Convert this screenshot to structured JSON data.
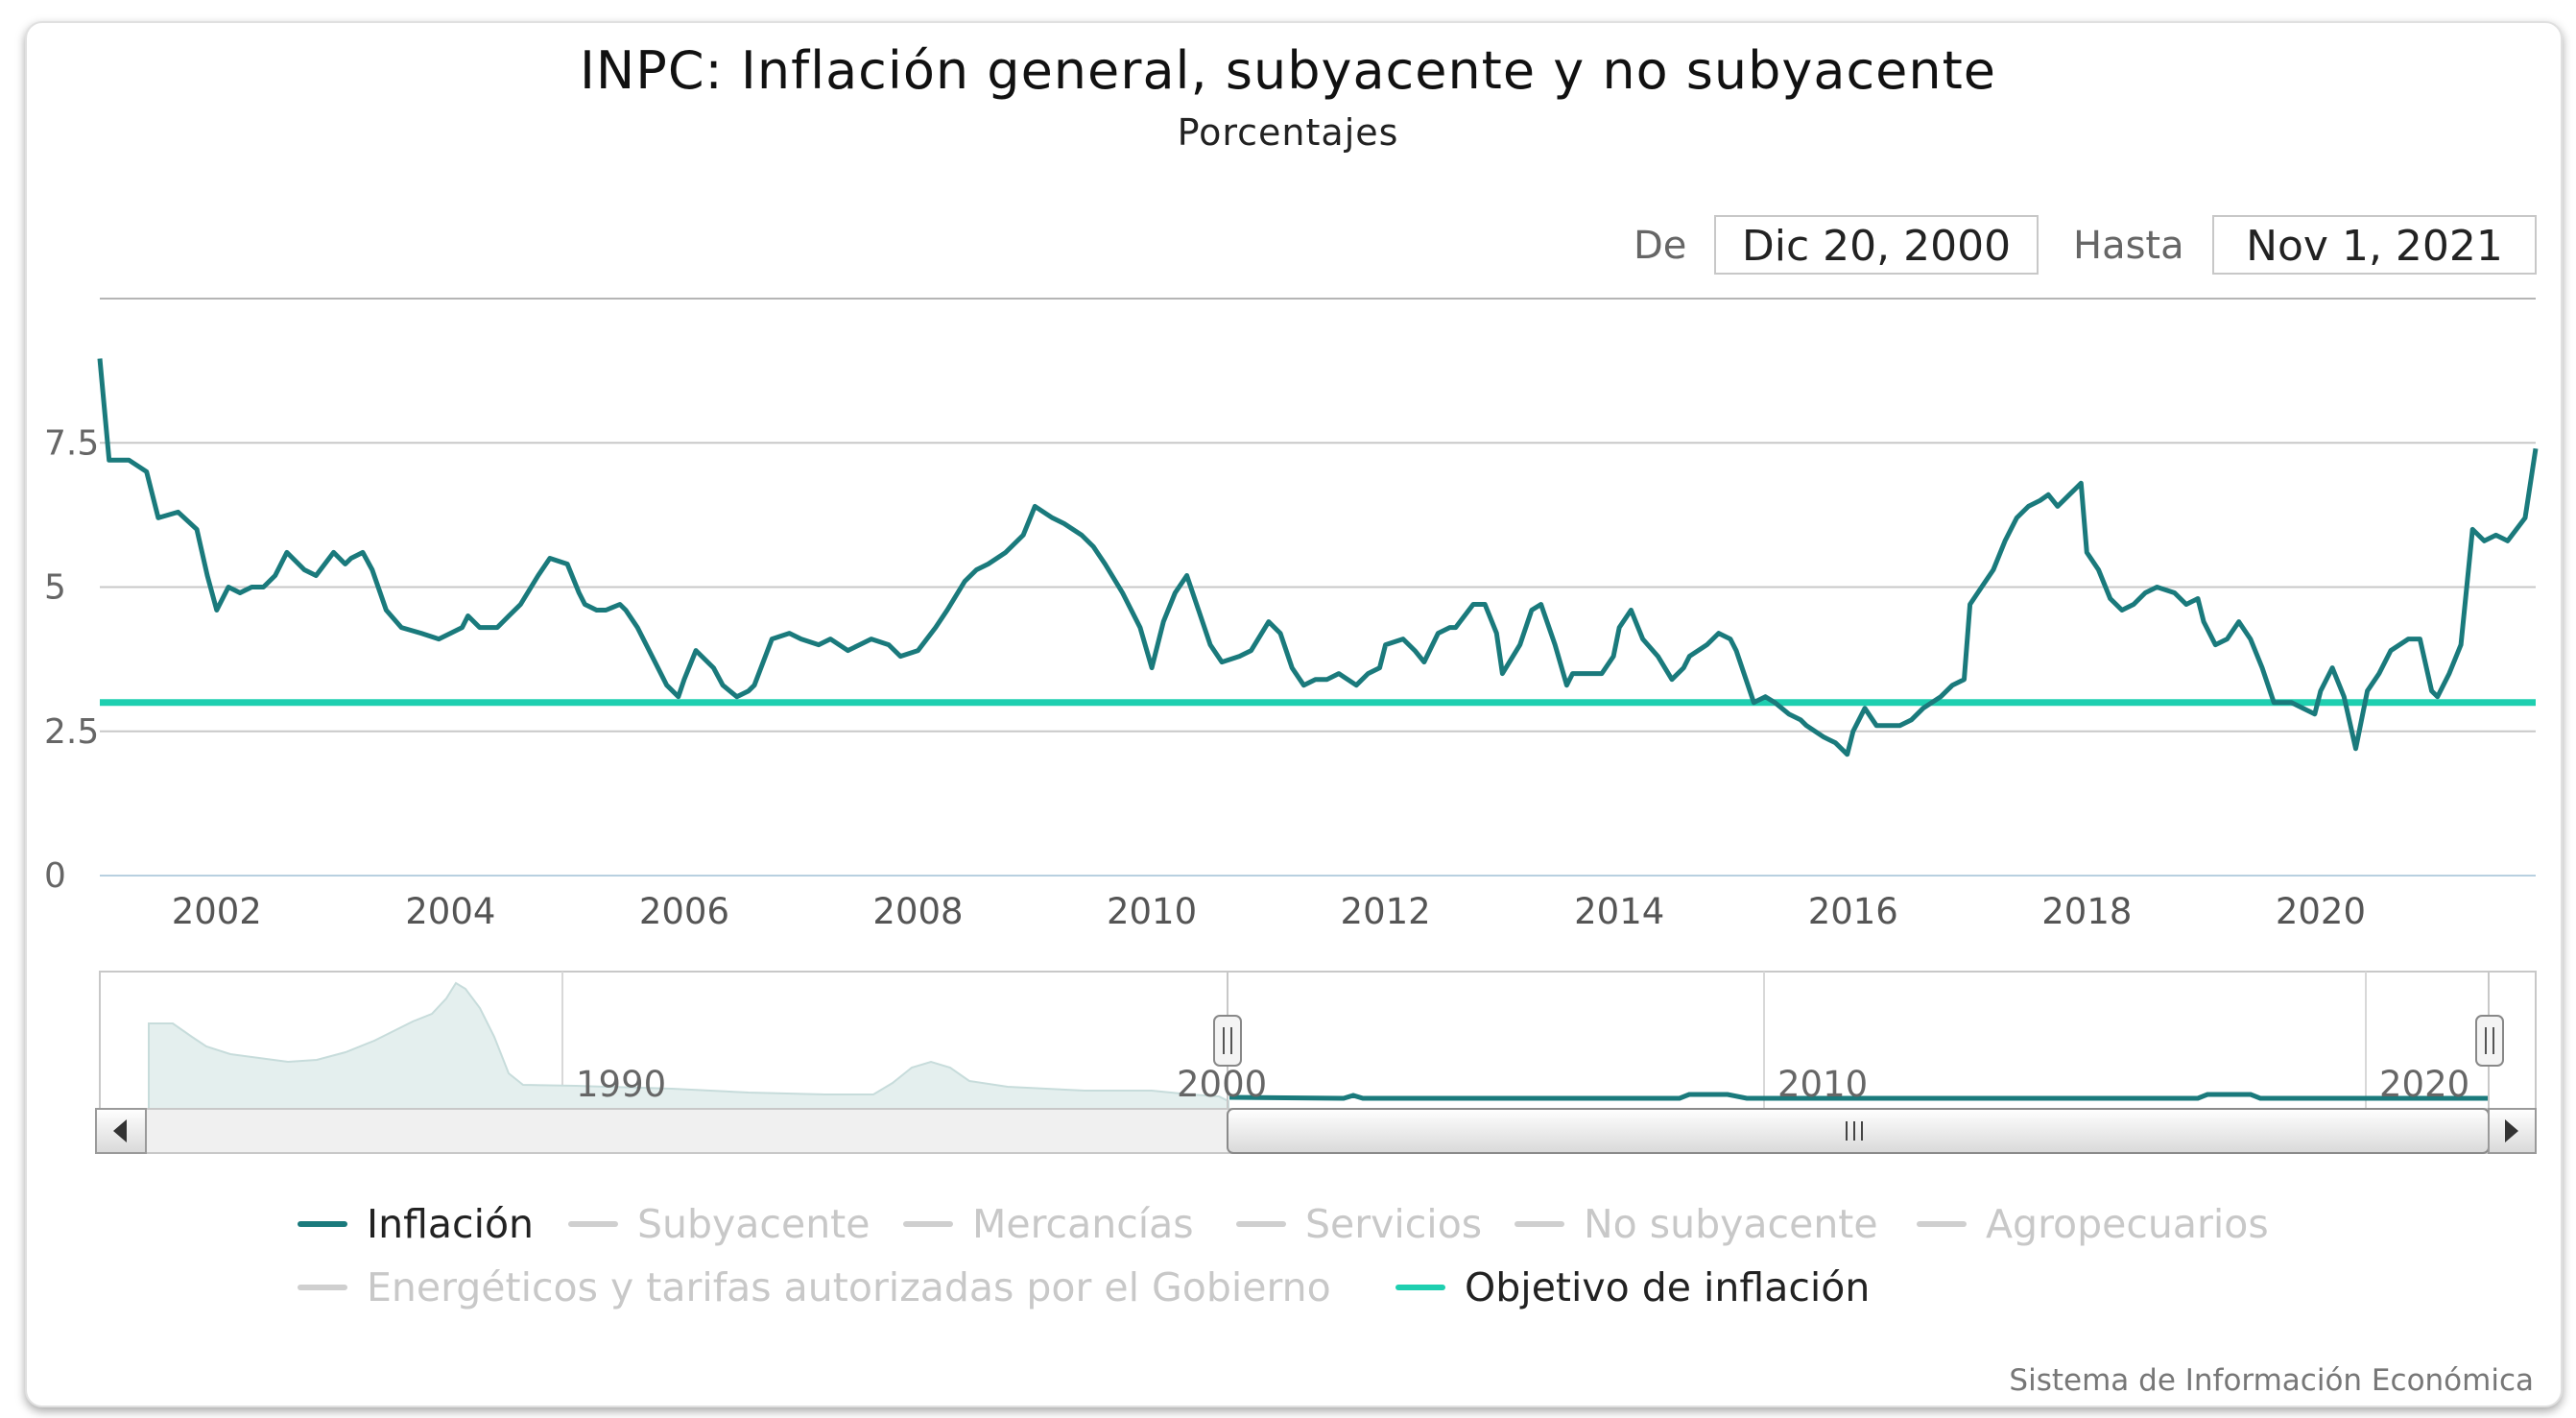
{
  "title": "INPC: Inflación general, subyacente y no subyacente",
  "subtitle": "Porcentajes",
  "range": {
    "from_label": "De",
    "from_value": "Dic 20, 2000",
    "to_label": "Hasta",
    "to_value": "Nov 1, 2021"
  },
  "credit": "Sistema de Información Económica",
  "colors": {
    "inflacion": "#1a7a7c",
    "objetivo": "#1ecfb0",
    "grid": "#c8c8c8",
    "inactive": "#cfcfcf"
  },
  "chart_data": {
    "type": "line",
    "title": "INPC: Inflación general, subyacente y no subyacente",
    "subtitle": "Porcentajes",
    "xlabel": "",
    "ylabel": "",
    "xlim": [
      2001.0,
      2021.84
    ],
    "ylim": [
      0,
      10
    ],
    "y_ticks": [
      0,
      2.5,
      5,
      7.5
    ],
    "y_tick_labels": [
      "0",
      "2.5",
      "5",
      "7.5"
    ],
    "x_ticks": [
      2002,
      2004,
      2006,
      2008,
      2010,
      2012,
      2014,
      2016,
      2018,
      2020
    ],
    "x_tick_labels": [
      "2002",
      "2004",
      "2006",
      "2008",
      "2010",
      "2012",
      "2014",
      "2016",
      "2018",
      "2020"
    ],
    "series": [
      {
        "name": "Inflación",
        "x": [
          2001.0,
          2001.08,
          2001.25,
          2001.4,
          2001.5,
          2001.67,
          2001.83,
          2001.92,
          2002.0,
          2002.1,
          2002.2,
          2002.3,
          2002.4,
          2002.5,
          2002.6,
          2002.75,
          2002.85,
          2003.0,
          2003.1,
          2003.15,
          2003.25,
          2003.33,
          2003.45,
          2003.58,
          2003.75,
          2003.9,
          2004.0,
          2004.1,
          2004.15,
          2004.25,
          2004.4,
          2004.5,
          2004.6,
          2004.75,
          2004.85,
          2005.0,
          2005.1,
          2005.15,
          2005.25,
          2005.33,
          2005.45,
          2005.5,
          2005.6,
          2005.75,
          2005.85,
          2005.95,
          2006.0,
          2006.1,
          2006.25,
          2006.33,
          2006.45,
          2006.55,
          2006.6,
          2006.75,
          2006.9,
          2007.0,
          2007.15,
          2007.25,
          2007.4,
          2007.5,
          2007.6,
          2007.75,
          2007.85,
          2008.0,
          2008.15,
          2008.25,
          2008.4,
          2008.5,
          2008.6,
          2008.75,
          2008.9,
          2009.0,
          2009.15,
          2009.25,
          2009.4,
          2009.5,
          2009.6,
          2009.75,
          2009.9,
          2010.0,
          2010.1,
          2010.2,
          2010.3,
          2010.4,
          2010.5,
          2010.6,
          2010.75,
          2010.85,
          2011.0,
          2011.1,
          2011.2,
          2011.3,
          2011.4,
          2011.5,
          2011.6,
          2011.75,
          2011.85,
          2011.95,
          2012.0,
          2012.15,
          2012.25,
          2012.33,
          2012.45,
          2012.55,
          2012.6,
          2012.75,
          2012.85,
          2012.95,
          2013.0,
          2013.15,
          2013.25,
          2013.33,
          2013.45,
          2013.55,
          2013.6,
          2013.75,
          2013.85,
          2013.95,
          2014.0,
          2014.1,
          2014.2,
          2014.33,
          2014.45,
          2014.55,
          2014.6,
          2014.75,
          2014.85,
          2014.95,
          2015.0,
          2015.15,
          2015.25,
          2015.33,
          2015.45,
          2015.55,
          2015.6,
          2015.75,
          2015.85,
          2015.95,
          2016.0,
          2016.1,
          2016.2,
          2016.3,
          2016.4,
          2016.5,
          2016.6,
          2016.75,
          2016.85,
          2016.95,
          2017.0,
          2017.1,
          2017.2,
          2017.3,
          2017.4,
          2017.5,
          2017.6,
          2017.67,
          2017.75,
          2017.85,
          2017.95,
          2018.0,
          2018.1,
          2018.2,
          2018.3,
          2018.4,
          2018.5,
          2018.6,
          2018.75,
          2018.85,
          2018.95,
          2019.0,
          2019.1,
          2019.2,
          2019.3,
          2019.4,
          2019.5,
          2019.6,
          2019.75,
          2019.85,
          2019.95,
          2020.0,
          2020.1,
          2020.2,
          2020.3,
          2020.4,
          2020.5,
          2020.6,
          2020.75,
          2020.85,
          2020.95,
          2021.0,
          2021.1,
          2021.2,
          2021.3,
          2021.4,
          2021.5,
          2021.6,
          2021.75,
          2021.84
        ],
        "values": [
          8.96,
          7.2,
          7.2,
          7.0,
          6.2,
          6.3,
          6.0,
          5.2,
          4.6,
          5.0,
          4.9,
          5.0,
          5.0,
          5.2,
          5.6,
          5.3,
          5.2,
          5.6,
          5.4,
          5.5,
          5.6,
          5.3,
          4.6,
          4.3,
          4.2,
          4.1,
          4.2,
          4.3,
          4.5,
          4.3,
          4.3,
          4.5,
          4.7,
          5.2,
          5.5,
          5.4,
          4.9,
          4.7,
          4.6,
          4.6,
          4.7,
          4.6,
          4.3,
          3.7,
          3.3,
          3.1,
          3.4,
          3.9,
          3.6,
          3.3,
          3.1,
          3.2,
          3.3,
          4.1,
          4.2,
          4.1,
          4.0,
          4.1,
          3.9,
          4.0,
          4.1,
          4.0,
          3.8,
          3.9,
          4.3,
          4.6,
          5.1,
          5.3,
          5.4,
          5.6,
          5.9,
          6.4,
          6.2,
          6.1,
          5.9,
          5.7,
          5.4,
          4.9,
          4.3,
          3.6,
          4.4,
          4.9,
          5.2,
          4.6,
          4.0,
          3.7,
          3.8,
          3.9,
          4.4,
          4.2,
          3.6,
          3.3,
          3.4,
          3.4,
          3.5,
          3.3,
          3.5,
          3.6,
          4.0,
          4.1,
          3.9,
          3.7,
          4.2,
          4.3,
          4.3,
          4.7,
          4.7,
          4.2,
          3.5,
          4.0,
          4.6,
          4.7,
          4.0,
          3.3,
          3.5,
          3.5,
          3.5,
          3.8,
          4.3,
          4.6,
          4.1,
          3.8,
          3.4,
          3.6,
          3.8,
          4.0,
          4.2,
          4.1,
          3.9,
          3.0,
          3.1,
          3.0,
          2.8,
          2.7,
          2.6,
          2.4,
          2.3,
          2.1,
          2.5,
          2.9,
          2.6,
          2.6,
          2.6,
          2.7,
          2.9,
          3.1,
          3.3,
          3.4,
          4.7,
          5.0,
          5.3,
          5.8,
          6.2,
          6.4,
          6.5,
          6.6,
          6.4,
          6.6,
          6.8,
          5.6,
          5.3,
          4.8,
          4.6,
          4.7,
          4.9,
          5.0,
          4.9,
          4.7,
          4.8,
          4.4,
          4.0,
          4.1,
          4.4,
          4.1,
          3.6,
          3.0,
          3.0,
          2.9,
          2.8,
          3.2,
          3.6,
          3.1,
          2.2,
          3.2,
          3.5,
          3.9,
          4.1,
          4.1,
          3.2,
          3.1,
          3.5,
          4.0,
          6.0,
          5.8,
          5.9,
          5.8,
          6.2,
          7.4
        ]
      },
      {
        "name": "Objetivo de inflación",
        "x": [
          2001.0,
          2021.84
        ],
        "values": [
          3.0,
          3.0
        ]
      }
    ],
    "legend": [
      {
        "label": "Inflación",
        "active": true
      },
      {
        "label": "Subyacente",
        "active": false
      },
      {
        "label": "Mercancías",
        "active": false
      },
      {
        "label": "Servicios",
        "active": false
      },
      {
        "label": "No subyacente",
        "active": false
      },
      {
        "label": "Agropecuarios",
        "active": false
      },
      {
        "label": "Energéticos y tarifas autorizadas por el Gobierno",
        "active": false
      },
      {
        "label": "Objetivo de inflación",
        "active": true
      }
    ],
    "navigator": {
      "x_ticks": [
        1990,
        2000,
        2010,
        2020
      ],
      "x_tick_labels": [
        "1990",
        "2000",
        "2010",
        "2020"
      ]
    }
  }
}
